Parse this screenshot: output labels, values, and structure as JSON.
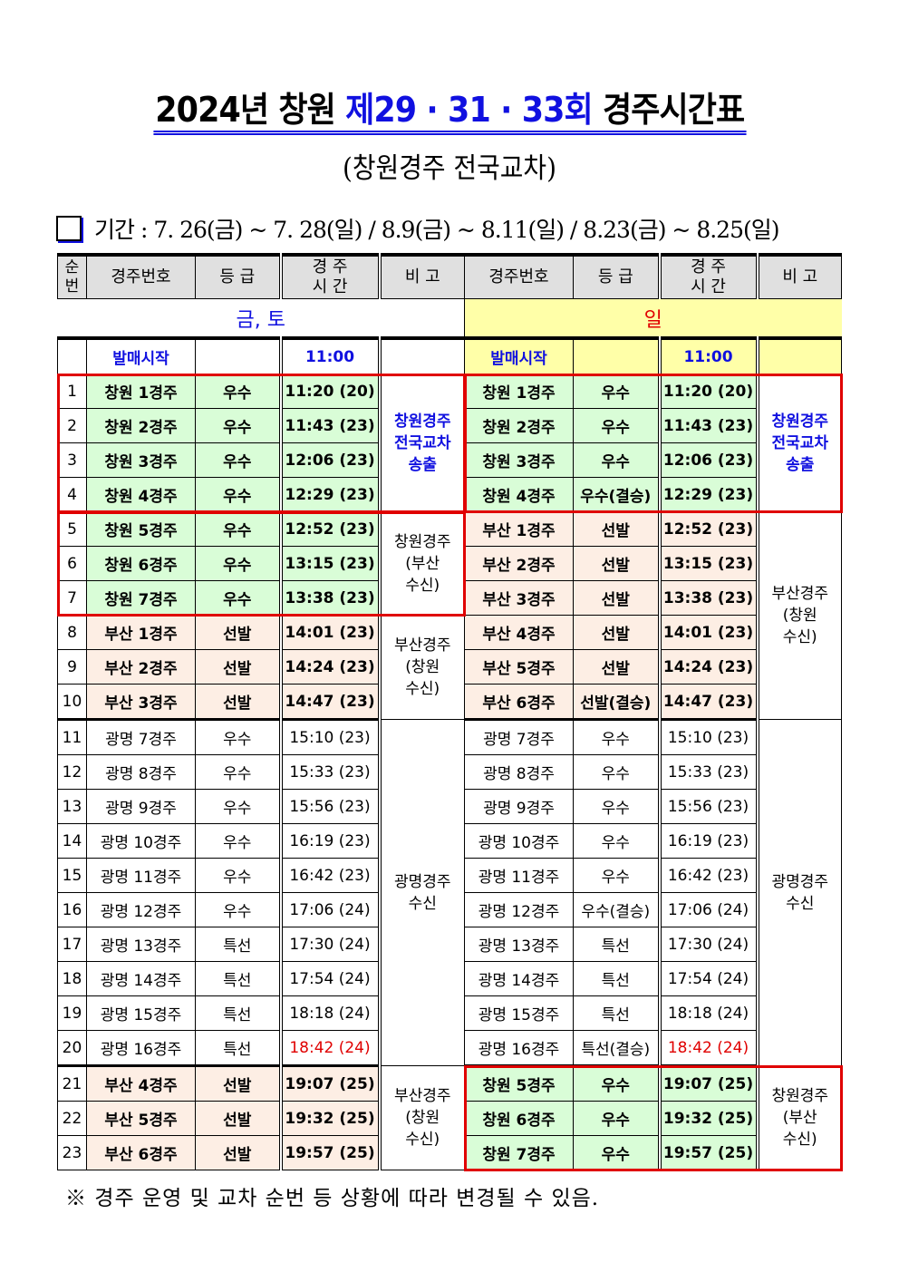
{
  "title": {
    "part1": "2024년 창원 ",
    "part2": "제29 · 31 · 33회",
    "part3": " 경주시간표"
  },
  "subtitle": "(창원경주 전국교차)",
  "period": "기간 : 7. 26(금) ~ 7. 28(일) / 8.9(금) ~ 8.11(일) / 8.23(금) ~ 8.25(일)",
  "headers": {
    "no": "순번",
    "race": "경주번호",
    "grade": "등 급",
    "time": "경 주 시 간",
    "note": "비 고"
  },
  "days": {
    "left": "금, 토",
    "right": "일"
  },
  "sale": {
    "label": "발매시작",
    "time": "11:00"
  },
  "colors": {
    "green": "#d9fdd7",
    "peach": "#fdeee4",
    "yellow": "#ffffa8",
    "blue": "#1010e0",
    "red": "#e00000"
  },
  "rows": [
    {
      "no": "1",
      "l": [
        "창원 1경주",
        "우수",
        "11:20 (20)"
      ],
      "r": [
        "창원 1경주",
        "우수",
        "11:20 (20)"
      ]
    },
    {
      "no": "2",
      "l": [
        "창원 2경주",
        "우수",
        "11:43 (23)"
      ],
      "r": [
        "창원 2경주",
        "우수",
        "11:43 (23)"
      ]
    },
    {
      "no": "3",
      "l": [
        "창원 3경주",
        "우수",
        "12:06 (23)"
      ],
      "r": [
        "창원 3경주",
        "우수",
        "12:06 (23)"
      ]
    },
    {
      "no": "4",
      "l": [
        "창원 4경주",
        "우수",
        "12:29 (23)"
      ],
      "r": [
        "창원 4경주",
        "우수(결승)",
        "12:29 (23)"
      ]
    },
    {
      "no": "5",
      "l": [
        "창원 5경주",
        "우수",
        "12:52 (23)"
      ],
      "r": [
        "부산 1경주",
        "선발",
        "12:52 (23)"
      ]
    },
    {
      "no": "6",
      "l": [
        "창원 6경주",
        "우수",
        "13:15 (23)"
      ],
      "r": [
        "부산 2경주",
        "선발",
        "13:15 (23)"
      ]
    },
    {
      "no": "7",
      "l": [
        "창원 7경주",
        "우수",
        "13:38 (23)"
      ],
      "r": [
        "부산 3경주",
        "선발",
        "13:38 (23)"
      ]
    },
    {
      "no": "8",
      "l": [
        "부산 1경주",
        "선발",
        "14:01 (23)"
      ],
      "r": [
        "부산 4경주",
        "선발",
        "14:01 (23)"
      ]
    },
    {
      "no": "9",
      "l": [
        "부산 2경주",
        "선발",
        "14:24 (23)"
      ],
      "r": [
        "부산 5경주",
        "선발",
        "14:24 (23)"
      ]
    },
    {
      "no": "10",
      "l": [
        "부산 3경주",
        "선발",
        "14:47 (23)"
      ],
      "r": [
        "부산 6경주",
        "선발(결승)",
        "14:47 (23)"
      ]
    },
    {
      "no": "11",
      "l": [
        "광명 7경주",
        "우수",
        "15:10 (23)"
      ],
      "r": [
        "광명 7경주",
        "우수",
        "15:10 (23)"
      ]
    },
    {
      "no": "12",
      "l": [
        "광명 8경주",
        "우수",
        "15:33 (23)"
      ],
      "r": [
        "광명 8경주",
        "우수",
        "15:33 (23)"
      ]
    },
    {
      "no": "13",
      "l": [
        "광명 9경주",
        "우수",
        "15:56 (23)"
      ],
      "r": [
        "광명 9경주",
        "우수",
        "15:56 (23)"
      ]
    },
    {
      "no": "14",
      "l": [
        "광명 10경주",
        "우수",
        "16:19 (23)"
      ],
      "r": [
        "광명 10경주",
        "우수",
        "16:19 (23)"
      ]
    },
    {
      "no": "15",
      "l": [
        "광명 11경주",
        "우수",
        "16:42 (23)"
      ],
      "r": [
        "광명 11경주",
        "우수",
        "16:42 (23)"
      ]
    },
    {
      "no": "16",
      "l": [
        "광명 12경주",
        "우수",
        "17:06 (24)"
      ],
      "r": [
        "광명 12경주",
        "우수(결승)",
        "17:06 (24)"
      ]
    },
    {
      "no": "17",
      "l": [
        "광명 13경주",
        "특선",
        "17:30 (24)"
      ],
      "r": [
        "광명 13경주",
        "특선",
        "17:30 (24)"
      ]
    },
    {
      "no": "18",
      "l": [
        "광명 14경주",
        "특선",
        "17:54 (24)"
      ],
      "r": [
        "광명 14경주",
        "특선",
        "17:54 (24)"
      ]
    },
    {
      "no": "19",
      "l": [
        "광명 15경주",
        "특선",
        "18:18 (24)"
      ],
      "r": [
        "광명 15경주",
        "특선",
        "18:18 (24)"
      ]
    },
    {
      "no": "20",
      "l": [
        "광명 16경주",
        "특선",
        "18:42 (24)"
      ],
      "r": [
        "광명 16경주",
        "특선(결승)",
        "18:42 (24)"
      ]
    },
    {
      "no": "21",
      "l": [
        "부산 4경주",
        "선발",
        "19:07 (25)"
      ],
      "r": [
        "창원 5경주",
        "우수",
        "19:07 (25)"
      ]
    },
    {
      "no": "22",
      "l": [
        "부산 5경주",
        "선발",
        "19:32 (25)"
      ],
      "r": [
        "창원 6경주",
        "우수",
        "19:32 (25)"
      ]
    },
    {
      "no": "23",
      "l": [
        "부산 6경주",
        "선발",
        "19:57 (25)"
      ],
      "r": [
        "창원 7경주",
        "우수",
        "19:57 (25)"
      ]
    }
  ],
  "notes_left": [
    {
      "start": 1,
      "span": 4,
      "lines": [
        "창원경주",
        "전국교차",
        "송출"
      ]
    },
    {
      "start": 5,
      "span": 3,
      "lines": [
        "창원경주",
        "(부산",
        "수신)"
      ]
    },
    {
      "start": 8,
      "span": 3,
      "lines": [
        "부산경주",
        "(창원",
        "수신)"
      ]
    },
    {
      "start": 11,
      "span": 10,
      "lines": [
        "광명경주",
        "수신"
      ]
    },
    {
      "start": 21,
      "span": 3,
      "lines": [
        "부산경주",
        "(창원",
        "수신)"
      ]
    }
  ],
  "notes_right": [
    {
      "start": 1,
      "span": 4,
      "lines": [
        "창원경주",
        "전국교차",
        "송출"
      ]
    },
    {
      "start": 5,
      "span": 6,
      "lines": [
        "부산경주",
        "(창원",
        "수신)"
      ]
    },
    {
      "start": 11,
      "span": 10,
      "lines": [
        "광명경주",
        "수신"
      ]
    },
    {
      "start": 21,
      "span": 3,
      "lines": [
        "창원경주",
        "(부산",
        "수신)"
      ]
    }
  ],
  "footnote": "※ 경주 운영 및 교차 순번 등 상황에 따라 변경될 수 있음."
}
